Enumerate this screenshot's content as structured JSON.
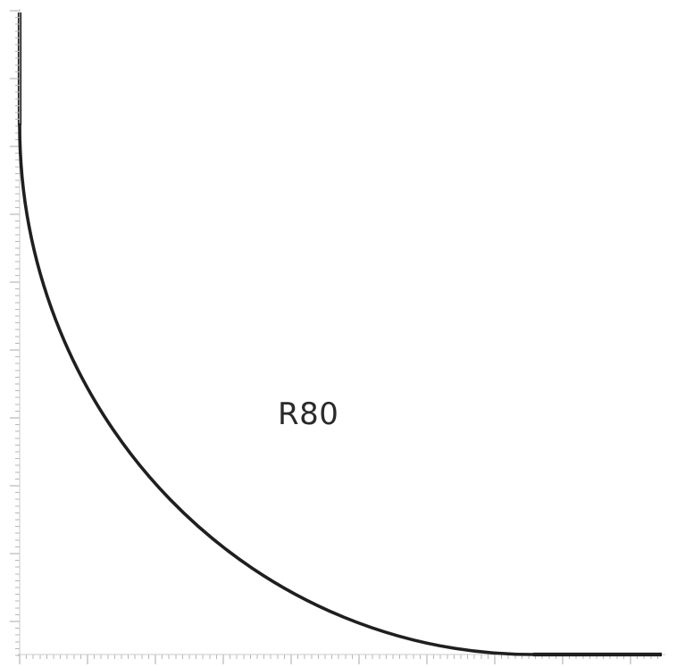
{
  "drawing": {
    "radius_label": "R80",
    "stroke_color": "#1f1f1f",
    "ruler_color": "#b7b7b7"
  }
}
